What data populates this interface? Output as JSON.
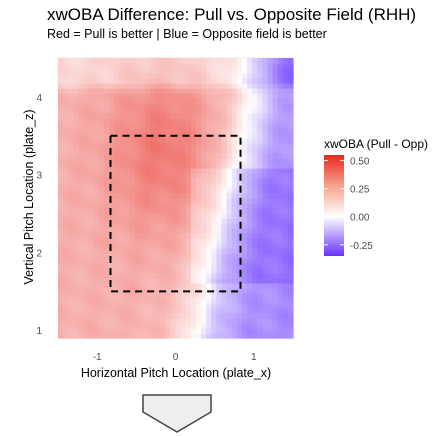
{
  "chart_data": {
    "type": "heatmap",
    "title": "xwOBA Difference: Pull vs. Opposite Field (RHH)",
    "subtitle": "Red = Pull is better | Blue = Opposite field is better",
    "xlabel": "Horizontal Pitch Location (plate_x)",
    "ylabel": "Vertical Pitch Location (plate_z)",
    "xlim": [
      -1.5,
      1.5
    ],
    "ylim": [
      0.9,
      4.5
    ],
    "x_ticks": [
      "-1",
      "0",
      "1"
    ],
    "x_tick_values": [
      -1,
      0,
      1
    ],
    "y_ticks": [
      "1",
      "2",
      "3",
      "4"
    ],
    "y_tick_values": [
      1,
      2,
      3,
      4
    ],
    "grid": true,
    "strike_zone": {
      "x": [
        -0.83,
        0.83
      ],
      "z": [
        1.5,
        3.5
      ],
      "style": "dashed"
    },
    "color_scale": {
      "title": "xwOBA (Pull - Opp)",
      "min": -0.35,
      "mid": 0.0,
      "max": 0.55,
      "low_color": "#6633ff",
      "mid_color": "#ffffff",
      "high_color": "#e8261d",
      "ticks": [
        0.5,
        0.25,
        0.0,
        -0.25
      ],
      "tick_labels": [
        "0.50",
        "0.25",
        "0.00",
        "-0.25"
      ]
    },
    "legend_position": "right"
  }
}
